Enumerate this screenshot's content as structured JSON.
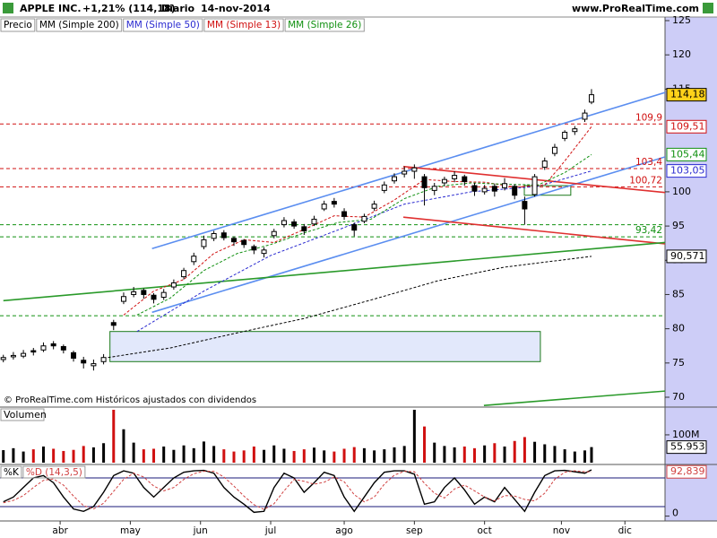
{
  "chart_data": [
    {
      "type": "candlestick",
      "title": "APPLE INC.",
      "change": "+1,21% (114,18)",
      "period": "Diario",
      "date": "14-nov-2014",
      "source": "www.ProRealTime.com",
      "note": "© ProRealTime.com  Históricos ajustados con dividendos",
      "name": "Precio",
      "last_label": "114,18",
      "xlim": [
        -1,
        198
      ],
      "ylim": [
        70,
        125
      ],
      "yticks": [
        70,
        75,
        80,
        85,
        90,
        95,
        100,
        115,
        120,
        125
      ],
      "x": [
        0,
        3,
        6,
        9,
        12,
        15,
        18,
        21,
        24,
        27,
        30,
        33,
        36,
        39,
        42,
        45,
        48,
        51,
        54,
        57,
        60,
        63,
        66,
        69,
        72,
        75,
        78,
        81,
        84,
        87,
        90,
        93,
        96,
        99,
        102,
        105,
        108,
        111,
        114,
        117,
        120,
        123,
        126,
        129,
        132,
        135,
        138,
        141,
        144,
        147,
        150,
        153,
        156,
        159,
        162,
        165,
        168,
        171,
        174,
        176
      ],
      "open": [
        75.5,
        75.9,
        76.0,
        76.8,
        76.9,
        77.8,
        77.4,
        76.5,
        75.4,
        74.6,
        75.2,
        80.9,
        84.0,
        85.0,
        85.6,
        84.9,
        84.6,
        86.1,
        87.6,
        89.8,
        92.0,
        93.2,
        94.0,
        93.2,
        92.9,
        92.0,
        91.0,
        93.6,
        95.2,
        95.6,
        94.9,
        95.3,
        97.5,
        98.6,
        97.1,
        95.2,
        95.7,
        97.6,
        100.2,
        101.6,
        102.6,
        103.0,
        102.2,
        100.2,
        101.3,
        101.9,
        102.2,
        100.9,
        100.0,
        100.8,
        100.6,
        100.8,
        98.6,
        99.6,
        103.6,
        105.6,
        107.8,
        108.8,
        110.6,
        113.1
      ],
      "high": [
        76.2,
        76.6,
        76.9,
        77.2,
        78.0,
        78.2,
        77.7,
        76.8,
        75.9,
        75.5,
        76.3,
        81.3,
        85.3,
        86.1,
        85.9,
        85.2,
        85.8,
        87.2,
        88.9,
        91.1,
        93.6,
        94.3,
        94.4,
        93.5,
        93.1,
        92.3,
        91.9,
        94.6,
        96.3,
        96.0,
        95.3,
        96.5,
        98.7,
        99.1,
        97.6,
        95.5,
        96.8,
        98.7,
        101.5,
        102.7,
        103.7,
        104.0,
        102.6,
        101.3,
        102.2,
        103.0,
        102.5,
        101.3,
        101.0,
        101.2,
        102.0,
        101.1,
        99.3,
        102.6,
        105.0,
        107.0,
        109.0,
        109.6,
        112.0,
        115.0
      ],
      "low": [
        75.1,
        75.5,
        75.7,
        76.1,
        76.6,
        77.0,
        76.4,
        75.2,
        74.2,
        73.9,
        74.8,
        79.8,
        83.6,
        84.6,
        84.4,
        83.7,
        84.2,
        85.7,
        87.2,
        89.3,
        91.6,
        92.8,
        92.9,
        92.1,
        91.8,
        90.9,
        90.4,
        93.2,
        94.8,
        94.6,
        93.7,
        95.0,
        97.2,
        97.7,
        95.9,
        93.5,
        95.4,
        97.2,
        99.8,
        101.2,
        102.1,
        101.9,
        98.0,
        99.5,
        100.8,
        101.4,
        100.9,
        99.4,
        99.6,
        99.3,
        100.2,
        98.9,
        95.2,
        99.3,
        103.2,
        105.2,
        107.4,
        108.3,
        110.2,
        112.8
      ],
      "close": [
        75.8,
        76.1,
        76.4,
        76.6,
        77.5,
        77.5,
        76.9,
        75.7,
        75.0,
        74.9,
        75.8,
        80.5,
        84.7,
        85.4,
        85.0,
        84.3,
        85.3,
        86.7,
        88.5,
        90.6,
        93.0,
        93.9,
        93.3,
        92.7,
        92.3,
        91.5,
        91.5,
        94.2,
        95.8,
        95.0,
        94.3,
        96.0,
        98.2,
        98.2,
        96.4,
        94.4,
        96.4,
        98.2,
        101.0,
        102.2,
        103.0,
        103.5,
        100.6,
        100.8,
        101.8,
        102.4,
        101.5,
        100.1,
        100.5,
        100.1,
        101.2,
        99.5,
        97.5,
        102.2,
        104.5,
        106.5,
        108.7,
        109.2,
        111.5,
        114.18
      ],
      "series": [
        {
          "name": "MM (Simple 200)",
          "color": "#000000",
          "last_label": "90,571",
          "x": [
            30,
            50,
            70,
            90,
            110,
            130,
            150,
            176
          ],
          "values": [
            75.7,
            77.2,
            79.4,
            81.5,
            84.2,
            87.0,
            89.0,
            90.571
          ]
        },
        {
          "name": "MM (Simple 50)",
          "color": "#2a2ad0",
          "last_label": "103,05",
          "x": [
            40,
            60,
            80,
            100,
            120,
            140,
            160,
            176
          ],
          "values": [
            79.6,
            85.5,
            90.7,
            94.4,
            98.2,
            100.0,
            100.8,
            103.05
          ]
        },
        {
          "name": "MM (Simple 13)",
          "color": "#d01010",
          "last_label": "109,51",
          "x": [
            36,
            45,
            54,
            63,
            72,
            81,
            90,
            99,
            108,
            117,
            126,
            135,
            144,
            153,
            162,
            168,
            176
          ],
          "values": [
            82.0,
            85.5,
            87.2,
            91.0,
            93.0,
            92.6,
            94.5,
            96.5,
            96.3,
            98.8,
            101.8,
            101.5,
            101.4,
            100.7,
            101.0,
            104.5,
            109.51
          ]
        },
        {
          "name": "MM (Simple 26)",
          "color": "#109010",
          "last_label": "105,44",
          "x": [
            40,
            50,
            60,
            70,
            80,
            90,
            100,
            110,
            120,
            130,
            140,
            150,
            160,
            168,
            176
          ],
          "values": [
            82.0,
            84.5,
            88.5,
            91.0,
            92.3,
            94.0,
            95.5,
            96.0,
            99.0,
            100.8,
            101.3,
            101.1,
            101.0,
            102.8,
            105.44
          ]
        }
      ],
      "levels": [
        {
          "value": 109.9,
          "label": "109,9",
          "color": "#d01010"
        },
        {
          "value": 103.4,
          "label": "103,4",
          "color": "#d01010"
        },
        {
          "value": 100.72,
          "label": "100,72",
          "color": "#d01010"
        },
        {
          "value": 95.2,
          "color": "#109010"
        },
        {
          "value": 93.42,
          "label": "93,42",
          "color": "#109010"
        },
        {
          "value": 81.9,
          "color": "#109010"
        }
      ],
      "trendlines": [
        {
          "color": "#5b8ef0",
          "x": [
            44.5,
            198
          ],
          "values": [
            91.7,
            114.5
          ]
        },
        {
          "color": "#5b8ef0",
          "x": [
            44.5,
            198
          ],
          "values": [
            82.4,
            105.1
          ]
        },
        {
          "color": "#e03030",
          "x": [
            119.7,
            198
          ],
          "values": [
            103.7,
            99.9
          ]
        },
        {
          "color": "#e03030",
          "x": [
            119.7,
            198
          ],
          "values": [
            96.3,
            92.4
          ]
        },
        {
          "color": "#2a9a2a",
          "x": [
            0,
            198
          ],
          "values": [
            84.1,
            92.6
          ]
        },
        {
          "color": "#2a9a2a",
          "x": [
            143.8,
            198
          ],
          "values": [
            68.8,
            70.9
          ]
        }
      ],
      "zones": [
        {
          "x": [
            31.9,
            160.7
          ],
          "values": [
            79.6,
            75.2
          ],
          "color": "#1a7a1a",
          "fill": "#e2e8fb"
        },
        {
          "x": [
            155.9,
            169.8
          ],
          "values": [
            100.9,
            99.5
          ],
          "color": "#1a7a1a"
        }
      ]
    },
    {
      "type": "bar",
      "title": "Volumen",
      "ylim": [
        0,
        190000
      ],
      "yticks": [
        {
          "value": 100000,
          "label": "100M"
        }
      ],
      "last_label": "55.953",
      "values": [
        45000,
        52000,
        40000,
        48000,
        58000,
        50000,
        42000,
        46000,
        60000,
        55000,
        70000,
        190000,
        120000,
        72000,
        48000,
        50000,
        58000,
        46000,
        62000,
        52000,
        76000,
        60000,
        48000,
        40000,
        44000,
        58000,
        46000,
        62000,
        50000,
        42000,
        48000,
        54000,
        44000,
        40000,
        50000,
        56000,
        52000,
        44000,
        48000,
        55000,
        60000,
        190000,
        130000,
        72000,
        60000,
        55000,
        58000,
        52000,
        62000,
        70000,
        58000,
        78000,
        92000,
        75000,
        66000,
        60000,
        48000,
        40000,
        44000,
        55953
      ]
    },
    {
      "type": "line",
      "ylim": [
        0,
        100
      ],
      "yticks": [
        0
      ],
      "levels": [
        20,
        80
      ],
      "xticks": [
        {
          "value": 17,
          "label": "abr"
        },
        {
          "value": 38,
          "label": "may"
        },
        {
          "value": 59,
          "label": "jun"
        },
        {
          "value": 80,
          "label": "jul"
        },
        {
          "value": 102,
          "label": "ago"
        },
        {
          "value": 123,
          "label": "sep"
        },
        {
          "value": 144,
          "label": "oct"
        },
        {
          "value": 167,
          "label": "nov"
        },
        {
          "value": 186,
          "label": "dic"
        }
      ],
      "series": [
        {
          "name": "%K",
          "color": "#000000",
          "values": [
            30,
            40,
            60,
            80,
            85,
            70,
            40,
            15,
            10,
            20,
            50,
            85,
            95,
            90,
            60,
            40,
            60,
            80,
            92,
            95,
            96,
            90,
            60,
            40,
            25,
            8,
            10,
            60,
            90,
            80,
            50,
            70,
            92,
            85,
            40,
            10,
            40,
            70,
            92,
            95,
            95,
            88,
            25,
            30,
            60,
            80,
            55,
            25,
            40,
            30,
            60,
            35,
            10,
            50,
            85,
            95,
            96,
            93,
            90,
            97
          ]
        },
        {
          "name": "%D (14,3,5)",
          "color": "#d04040",
          "last_label": "92,839",
          "values": [
            28,
            33,
            43,
            60,
            75,
            78,
            65,
            42,
            22,
            15,
            27,
            52,
            77,
            90,
            82,
            63,
            53,
            60,
            77,
            89,
            94,
            94,
            82,
            63,
            42,
            24,
            14,
            26,
            53,
            77,
            73,
            67,
            71,
            82,
            72,
            45,
            30,
            40,
            67,
            86,
            94,
            93,
            69,
            48,
            38,
            57,
            65,
            53,
            40,
            32,
            43,
            42,
            35,
            32,
            48,
            77,
            92,
            95,
            93,
            92.839
          ]
        }
      ]
    }
  ]
}
